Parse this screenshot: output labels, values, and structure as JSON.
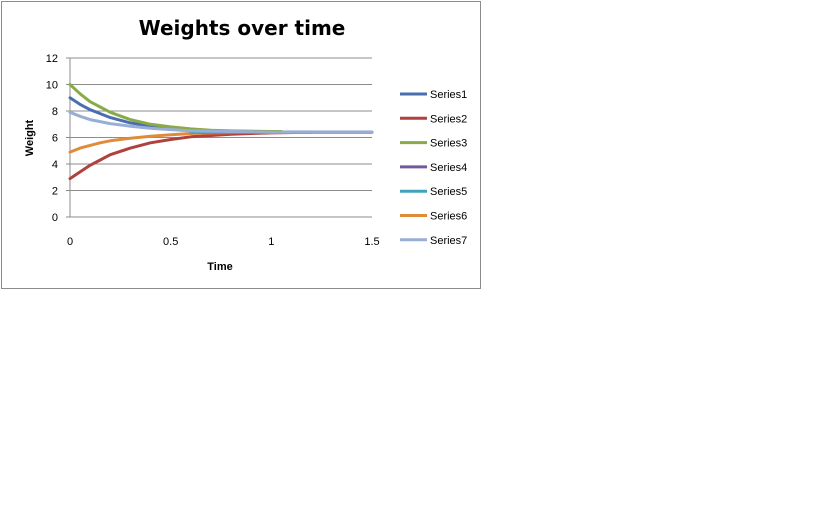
{
  "chart_data": {
    "type": "line",
    "title": "Weights over time",
    "xlabel": "Time",
    "ylabel": "Weight",
    "xlim": [
      0,
      1.5
    ],
    "ylim": [
      0,
      12
    ],
    "xticks": [
      "0",
      "0.5",
      "1",
      "1.5"
    ],
    "yticks": [
      "0",
      "2",
      "4",
      "6",
      "8",
      "10",
      "12"
    ],
    "grid": "horizontal",
    "legend_position": "right",
    "series": [
      {
        "name": "Series1",
        "color": "#4a6fb0",
        "x": [
          0,
          0.05,
          0.1,
          0.15,
          0.2,
          0.3,
          0.4,
          0.5,
          0.6,
          0.7,
          0.8,
          1.0,
          1.2,
          1.5
        ],
        "y": [
          9.0,
          8.5,
          8.1,
          7.8,
          7.5,
          7.1,
          6.85,
          6.7,
          6.6,
          6.5,
          6.45,
          6.4,
          6.4,
          6.4
        ]
      },
      {
        "name": "Series2",
        "color": "#b0413e",
        "x": [
          0,
          0.05,
          0.1,
          0.15,
          0.2,
          0.3,
          0.4,
          0.5,
          0.6,
          0.7,
          0.8,
          0.9,
          1.0,
          1.2
        ],
        "y": [
          2.9,
          3.4,
          3.9,
          4.3,
          4.7,
          5.2,
          5.6,
          5.85,
          6.05,
          6.15,
          6.25,
          6.3,
          6.35,
          6.4
        ]
      },
      {
        "name": "Series3",
        "color": "#8aaa48",
        "x": [
          0,
          0.05,
          0.1,
          0.15,
          0.2,
          0.3,
          0.4,
          0.5,
          0.6,
          0.7,
          0.8,
          1.0,
          1.05
        ],
        "y": [
          10.0,
          9.3,
          8.7,
          8.3,
          7.9,
          7.35,
          7.0,
          6.8,
          6.65,
          6.55,
          6.5,
          6.45,
          6.45
        ]
      },
      {
        "name": "Series4",
        "color": "#705b9a",
        "x": [
          0.6,
          0.8,
          1.0,
          1.2
        ],
        "y": [
          6.4,
          6.4,
          6.4,
          6.4
        ]
      },
      {
        "name": "Series5",
        "color": "#3fa3bf",
        "x": [
          0.6,
          1.0,
          1.5
        ],
        "y": [
          6.4,
          6.4,
          6.4
        ]
      },
      {
        "name": "Series6",
        "color": "#e08b3a",
        "x": [
          0,
          0.05,
          0.1,
          0.15,
          0.2,
          0.3,
          0.4,
          0.5,
          0.6,
          0.7,
          0.9
        ],
        "y": [
          4.9,
          5.2,
          5.4,
          5.6,
          5.75,
          5.95,
          6.1,
          6.2,
          6.3,
          6.35,
          6.4
        ]
      },
      {
        "name": "Series7",
        "color": "#98aed6",
        "x": [
          0,
          0.05,
          0.1,
          0.15,
          0.2,
          0.3,
          0.4,
          0.5,
          0.6,
          0.8,
          1.0,
          1.5
        ],
        "y": [
          7.9,
          7.6,
          7.35,
          7.2,
          7.05,
          6.85,
          6.7,
          6.6,
          6.5,
          6.45,
          6.4,
          6.4
        ]
      }
    ]
  }
}
